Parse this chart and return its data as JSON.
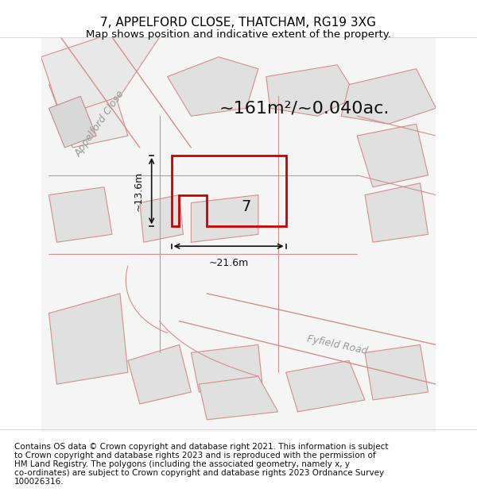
{
  "title_line1": "7, APPELFORD CLOSE, THATCHAM, RG19 3XG",
  "title_line2": "Map shows position and indicative extent of the property.",
  "copyright_text": "Contains OS data © Crown copyright and database right 2021. This information is subject to Crown copyright and database rights 2023 and is reproduced with the permission of HM Land Registry. The polygons (including the associated geometry, namely x, y co-ordinates) are subject to Crown copyright and database rights 2023 Ordnance Survey 100026316.",
  "area_text": "~161m²/~0.040ac.",
  "dim_vertical": "~13.6m",
  "dim_horizontal": "~21.6m",
  "property_label": "7",
  "road_label_1": "Appelford Close",
  "road_label_2": "Fyfield Road",
  "bg_color": "#f5f5f5",
  "map_bg": "#f8f8f8",
  "road_fill": "#e8e8e8",
  "road_stroke": "#e8a0a0",
  "property_stroke": "#cc0000",
  "property_fill": "none",
  "dim_color": "#111111",
  "title_fontsize": 11,
  "subtitle_fontsize": 9.5,
  "area_fontsize": 18,
  "dim_fontsize": 10,
  "label_fontsize": 12,
  "road_label_fontsize": 12,
  "copyright_fontsize": 7.5
}
